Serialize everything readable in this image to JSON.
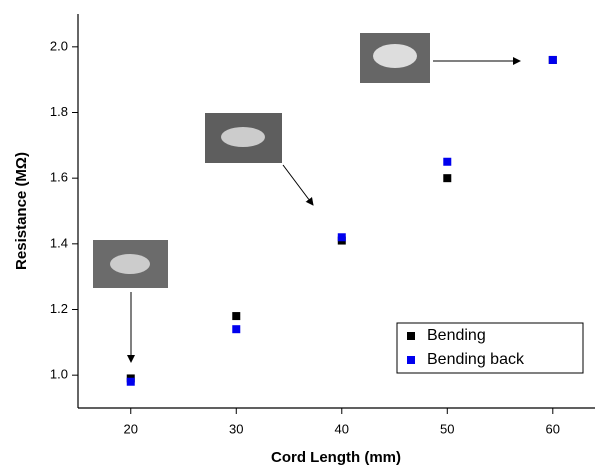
{
  "chart_data": {
    "type": "scatter",
    "xlabel": "Cord Length (mm)",
    "ylabel": "Resistance (MΩ)",
    "xlim": [
      15,
      64
    ],
    "xticks": [
      20,
      30,
      40,
      50,
      60
    ],
    "ylim": [
      0.9,
      2.1
    ],
    "yticks": [
      {
        "value": 1.0,
        "label": "1.0"
      },
      1.2,
      1.4,
      1.6,
      1.8,
      {
        "value": 2.0,
        "label": "2.0"
      }
    ],
    "legend": "lower right",
    "series": [
      {
        "name": "Bending",
        "color": "#000000",
        "x": [
          20,
          30,
          40,
          50,
          60
        ],
        "values": [
          0.99,
          1.18,
          1.41,
          1.6,
          1.96
        ]
      },
      {
        "name": "Bending back",
        "color": "#0000ee",
        "x": [
          20,
          30,
          40,
          50,
          60
        ],
        "values": [
          0.98,
          1.14,
          1.42,
          1.65,
          1.96
        ]
      }
    ]
  }
}
